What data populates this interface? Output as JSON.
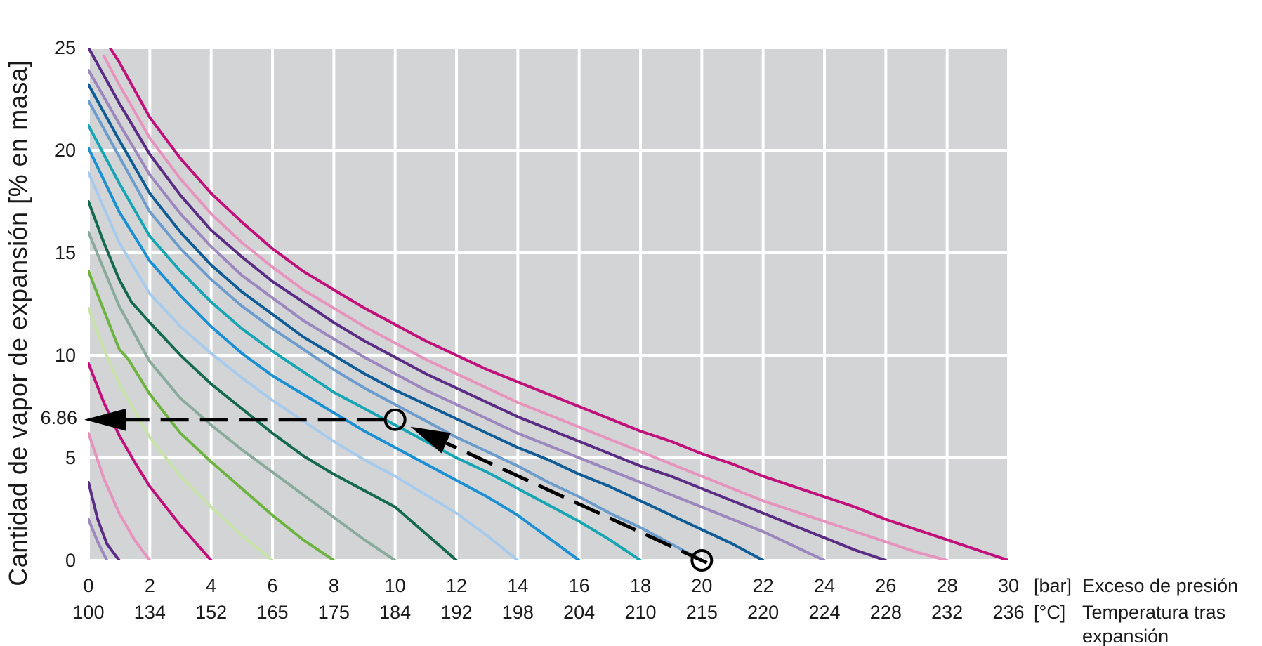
{
  "chart_data": {
    "type": "line",
    "ylabel": "Cantidad de vapor de expansión  [% en masa]",
    "x_unit": "[bar]",
    "x_label": "Exceso de presión",
    "x2_unit": "[°C]",
    "x2_label_line1": "Temperatura tras",
    "x2_label_line2": "expansión",
    "xlim": [
      0,
      30
    ],
    "ylim": [
      0,
      25
    ],
    "x_ticks": [
      "0",
      "2",
      "4",
      "6",
      "8",
      "10",
      "12",
      "14",
      "16",
      "18",
      "20",
      "22",
      "24",
      "26",
      "28",
      "30"
    ],
    "x2_ticks": [
      "100",
      "134",
      "152",
      "165",
      "175",
      "184",
      "192",
      "198",
      "204",
      "210",
      "215",
      "220",
      "224",
      "228",
      "232",
      "236"
    ],
    "y_ticks": [
      "0",
      "5",
      "10",
      "15",
      "20",
      "25"
    ],
    "highlight_value": "6.86",
    "grid": true,
    "colors": {
      "plot_bg": "#d3d4d6",
      "grid": "#ffffff",
      "annotation": "#000000"
    },
    "series": [
      {
        "color": "#5b2c83",
        "x": [
          0.0,
          0.3,
          0.6,
          1.0
        ],
        "y": [
          3.8,
          2.0,
          0.8,
          0.0
        ]
      },
      {
        "color": "#9b87bd",
        "x": [
          0.0,
          0.3,
          0.6
        ],
        "y": [
          2.0,
          0.9,
          0.0
        ]
      },
      {
        "color": "#e693bd",
        "x": [
          0.0,
          0.5,
          1.0,
          1.5,
          2.0
        ],
        "y": [
          6.2,
          4.0,
          2.3,
          1.0,
          0.0
        ]
      },
      {
        "color": "#c0117b",
        "x": [
          0.0,
          0.5,
          1.0,
          1.5,
          2.0,
          3.0,
          4.0
        ],
        "y": [
          9.6,
          7.7,
          6.1,
          4.8,
          3.6,
          1.7,
          0.0
        ]
      },
      {
        "color": "#c7e3a8",
        "x": [
          0.0,
          0.5,
          1.0,
          2.0,
          3.0,
          4.0,
          5.0,
          6.0
        ],
        "y": [
          12.3,
          10.3,
          8.6,
          6.0,
          4.1,
          2.6,
          1.2,
          0.0
        ]
      },
      {
        "color": "#6db33f",
        "x": [
          0.0,
          0.5,
          1.0,
          1.3,
          2.0,
          3.0,
          4.0,
          5.0,
          6.0,
          7.0,
          8.0
        ],
        "y": [
          14.1,
          12.2,
          10.3,
          9.8,
          8.1,
          6.2,
          4.8,
          3.5,
          2.2,
          1.0,
          0.0
        ]
      },
      {
        "color": "#8aab9c",
        "x": [
          0.0,
          0.5,
          1.0,
          1.7,
          2.0,
          3.0,
          4.0,
          5.0,
          6.0,
          7.0,
          8.0,
          9.0,
          10.0
        ],
        "y": [
          16.0,
          14.2,
          12.4,
          10.5,
          9.7,
          7.9,
          6.6,
          5.4,
          4.3,
          3.2,
          2.1,
          1.0,
          0.0
        ]
      },
      {
        "color": "#136a4c",
        "x": [
          0.0,
          0.5,
          1.0,
          1.4,
          2.0,
          3.0,
          4.0,
          5.0,
          6.0,
          7.0,
          8.0,
          9.0,
          10.0,
          11.0,
          12.0
        ],
        "y": [
          17.5,
          15.5,
          13.7,
          12.6,
          11.6,
          10.0,
          8.6,
          7.4,
          6.2,
          5.1,
          4.2,
          3.4,
          2.6,
          1.3,
          0.0
        ]
      },
      {
        "color": "#a7cbec",
        "x": [
          0.0,
          1.0,
          2.0,
          3.0,
          4.0,
          5.0,
          6.0,
          7.0,
          8.0,
          9.0,
          10.0,
          11.0,
          12.0,
          13.0,
          14.0
        ],
        "y": [
          18.9,
          15.5,
          13.0,
          11.4,
          10.1,
          8.9,
          7.8,
          6.8,
          5.8,
          4.9,
          4.1,
          3.2,
          2.3,
          1.2,
          0.0
        ]
      },
      {
        "color": "#1a8fd2",
        "x": [
          0.0,
          1.0,
          2.0,
          3.0,
          4.0,
          5.0,
          6.0,
          7.0,
          8.0,
          9.0,
          10.0,
          11.0,
          12.0,
          13.0,
          14.0,
          15.0,
          16.0
        ],
        "y": [
          20.1,
          17.0,
          14.6,
          12.9,
          11.4,
          10.1,
          9.0,
          8.1,
          7.2,
          6.3,
          5.5,
          4.7,
          3.9,
          3.1,
          2.2,
          1.1,
          0.0
        ]
      },
      {
        "color": "#17a5b3",
        "x": [
          0.0,
          1.0,
          2.0,
          3.0,
          4.0,
          5.0,
          6.0,
          7.0,
          8.0,
          9.0,
          10.0,
          11.0,
          12.0,
          13.0,
          14.0,
          15.0,
          16.0,
          17.0,
          18.0
        ],
        "y": [
          21.2,
          18.4,
          15.8,
          14.1,
          12.6,
          11.3,
          10.2,
          9.2,
          8.2,
          7.4,
          6.6,
          5.8,
          5.0,
          4.3,
          3.5,
          2.7,
          1.9,
          1.0,
          0.0
        ]
      },
      {
        "color": "#6b9ccc",
        "x": [
          0.0,
          1.0,
          2.0,
          3.0,
          4.0,
          5.0,
          6.0,
          7.0,
          8.0,
          9.0,
          10.0,
          11.0,
          12.0,
          13.0,
          14.0,
          15.0,
          16.0,
          17.0,
          18.0,
          19.0,
          20.0
        ],
        "y": [
          22.4,
          19.7,
          17.0,
          15.2,
          13.7,
          12.4,
          11.3,
          10.3,
          9.3,
          8.4,
          7.6,
          6.8,
          6.0,
          5.3,
          4.6,
          3.8,
          3.1,
          2.3,
          1.6,
          0.8,
          0.0
        ]
      },
      {
        "color": "#0f5c96",
        "x": [
          0.0,
          1.0,
          2.0,
          3.0,
          4.0,
          5.0,
          6.0,
          7.0,
          8.0,
          9.0,
          10.0,
          11.0,
          12.0,
          13.0,
          14.0,
          15.0,
          16.0,
          17.0,
          18.0,
          19.0,
          20.0,
          21.0,
          22.0
        ],
        "y": [
          23.2,
          20.5,
          17.9,
          16.0,
          14.4,
          13.1,
          12.0,
          10.9,
          10.0,
          9.1,
          8.3,
          7.6,
          6.9,
          6.2,
          5.5,
          4.9,
          4.2,
          3.6,
          2.9,
          2.2,
          1.5,
          0.8,
          0.0
        ]
      },
      {
        "color": "#9b87bd",
        "x": [
          0.0,
          1.0,
          2.0,
          3.0,
          4.0,
          5.0,
          6.0,
          7.0,
          8.0,
          9.0,
          10.0,
          11.0,
          12.0,
          13.0,
          14.0,
          15.0,
          16.0,
          17.0,
          18.0,
          19.0,
          20.0,
          21.0,
          22.0,
          23.0,
          24.0
        ],
        "y": [
          23.9,
          21.3,
          18.8,
          16.9,
          15.3,
          13.9,
          12.8,
          11.7,
          10.8,
          9.9,
          9.1,
          8.3,
          7.6,
          6.9,
          6.2,
          5.6,
          5.0,
          4.4,
          3.8,
          3.2,
          2.6,
          2.0,
          1.4,
          0.7,
          0.0
        ]
      },
      {
        "color": "#5b2c83",
        "x": [
          0.0,
          1.0,
          2.0,
          3.0,
          4.0,
          5.0,
          6.0,
          7.0,
          8.0,
          9.0,
          10.0,
          11.0,
          12.0,
          13.0,
          14.0,
          15.0,
          16.0,
          17.0,
          18.0,
          19.0,
          20.0,
          21.0,
          22.0,
          23.0,
          24.0,
          25.0,
          26.0
        ],
        "y": [
          25.0,
          22.3,
          19.8,
          17.8,
          16.1,
          14.8,
          13.6,
          12.6,
          11.6,
          10.7,
          9.9,
          9.1,
          8.4,
          7.7,
          7.0,
          6.4,
          5.8,
          5.2,
          4.6,
          4.1,
          3.5,
          2.9,
          2.3,
          1.7,
          1.1,
          0.5,
          0.0
        ]
      },
      {
        "color": "#e693bd",
        "x": [
          0.5,
          1.0,
          2.0,
          3.0,
          4.0,
          5.0,
          6.0,
          7.0,
          8.0,
          9.0,
          10.0,
          11.0,
          12.0,
          13.0,
          14.0,
          15.0,
          16.0,
          17.0,
          18.0,
          19.0,
          20.0,
          21.0,
          22.0,
          23.0,
          24.0,
          25.0,
          26.0,
          27.0,
          28.0
        ],
        "y": [
          24.6,
          23.2,
          20.6,
          18.6,
          16.9,
          15.5,
          14.3,
          13.2,
          12.3,
          11.4,
          10.6,
          9.8,
          9.1,
          8.4,
          7.7,
          7.1,
          6.5,
          5.9,
          5.3,
          4.7,
          4.1,
          3.5,
          2.9,
          2.4,
          1.9,
          1.4,
          0.9,
          0.4,
          0.0
        ]
      },
      {
        "color": "#c0117b",
        "x": [
          0.7,
          1.0,
          2.0,
          3.0,
          4.0,
          5.0,
          6.0,
          7.0,
          8.0,
          9.0,
          10.0,
          11.0,
          12.0,
          13.0,
          14.0,
          15.0,
          16.0,
          17.0,
          18.0,
          19.0,
          20.0,
          21.0,
          22.0,
          23.0,
          24.0,
          25.0,
          26.0,
          27.0,
          28.0,
          29.0,
          30.0
        ],
        "y": [
          25.0,
          24.3,
          21.6,
          19.6,
          17.9,
          16.5,
          15.2,
          14.1,
          13.2,
          12.3,
          11.5,
          10.7,
          10.0,
          9.3,
          8.7,
          8.1,
          7.5,
          6.9,
          6.3,
          5.8,
          5.2,
          4.7,
          4.1,
          3.6,
          3.1,
          2.6,
          2.0,
          1.5,
          1.0,
          0.5,
          0.0
        ]
      }
    ],
    "annotations": {
      "start_point": {
        "x": 20,
        "y": 0
      },
      "mid_point": {
        "x": 10,
        "y": 6.86
      },
      "end_value": {
        "x": 0,
        "y": 6.86
      }
    }
  }
}
